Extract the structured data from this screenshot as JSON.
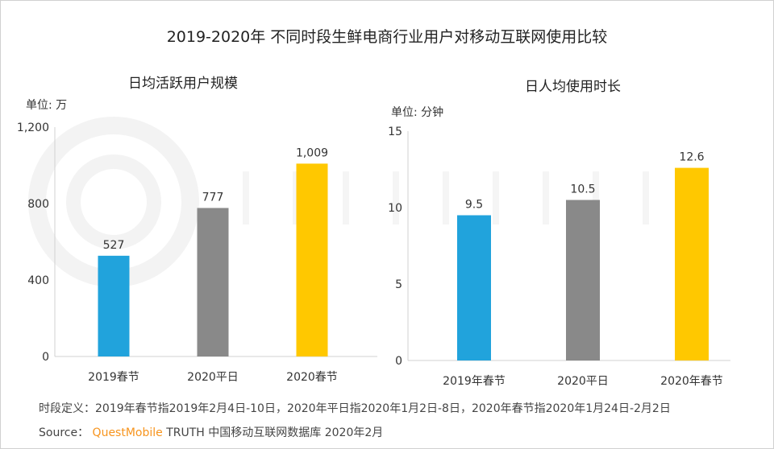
{
  "title": "2019-2020年 不同时段生鲜电商行业用户对移动互联网使用比较",
  "watermark": "QUEST MOBILE",
  "colors": [
    "#21a3dc",
    "#898989",
    "#ffc800"
  ],
  "chart_data": [
    {
      "type": "bar",
      "title": "日均活跃用户规模",
      "unit": "单位: 万",
      "categories": [
        "2019春节",
        "2020平日",
        "2020春节"
      ],
      "values": [
        527,
        777,
        1009
      ],
      "labels": [
        "527",
        "777",
        "1,009"
      ],
      "ylim": [
        0,
        1200
      ],
      "yticks": [
        0,
        400,
        800,
        1200
      ],
      "ytick_labels": [
        "0",
        "400",
        "800",
        "1,200"
      ],
      "grid": false
    },
    {
      "type": "bar",
      "title": "日人均使用时长",
      "unit": "单位: 分钟",
      "categories": [
        "2019年春节",
        "2020平日",
        "2020年春节"
      ],
      "values": [
        9.5,
        10.5,
        12.6
      ],
      "labels": [
        "9.5",
        "10.5",
        "12.6"
      ],
      "ylim": [
        0,
        15
      ],
      "yticks": [
        0,
        5,
        10,
        15
      ],
      "ytick_labels": [
        "0",
        "5",
        "10",
        "15"
      ],
      "grid": false
    }
  ],
  "footer": {
    "definition": "时段定义：2019年春节指2019年2月4日-10日，2020年平日指2020年1月2日-8日，2020年春节指2020年1月24日-2月2日",
    "source_label": "Source：",
    "source_brand": "QuestMobile",
    "source_text": "TRUTH 中国移动互联网数据库 2020年2月"
  }
}
